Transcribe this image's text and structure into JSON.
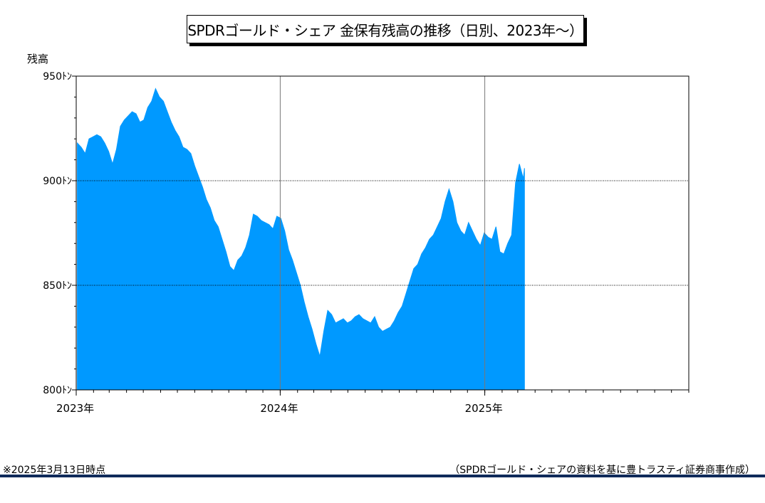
{
  "colors": {
    "area": "#0099ff",
    "frame": "#000000",
    "grid": "#000000",
    "divider": "#0f2a5a"
  },
  "chart_data": {
    "type": "area",
    "title": "SPDRゴールド・シェア 金保有残高の推移（日別、2023年～）",
    "ylabel": "残高",
    "xlabel": "",
    "ylim": [
      800,
      950
    ],
    "y_ticks": [
      800,
      850,
      900,
      950
    ],
    "y_tick_labels": [
      "800ﾄﾝ",
      "850ﾄﾝ",
      "900ﾄﾝ",
      "950ﾄﾝ"
    ],
    "y_minor_step": 10,
    "x_range": [
      "2023-01-01",
      "2026-01-01"
    ],
    "x_ticks": [
      "2023-01-01",
      "2024-01-01",
      "2025-01-01"
    ],
    "x_tick_labels": [
      "2023年",
      "2024年",
      "2025年"
    ],
    "x_minor": "monthly",
    "hgrid_dotted": [
      850,
      900
    ],
    "vgrid": [
      "2024-01-01",
      "2025-01-01"
    ],
    "grid": true,
    "legend": "none",
    "series": [
      {
        "x": [
          "2023-01-03",
          "2023-01-10",
          "2023-01-17",
          "2023-01-24",
          "2023-01-31",
          "2023-02-07",
          "2023-02-14",
          "2023-02-21",
          "2023-02-28",
          "2023-03-07",
          "2023-03-14",
          "2023-03-21",
          "2023-03-28",
          "2023-04-04",
          "2023-04-11",
          "2023-04-18",
          "2023-04-25",
          "2023-05-02",
          "2023-05-09",
          "2023-05-16",
          "2023-05-23",
          "2023-05-30",
          "2023-06-06",
          "2023-06-13",
          "2023-06-20",
          "2023-06-27",
          "2023-07-04",
          "2023-07-11",
          "2023-07-18",
          "2023-07-25",
          "2023-08-01",
          "2023-08-08",
          "2023-08-15",
          "2023-08-22",
          "2023-08-29",
          "2023-09-05",
          "2023-09-12",
          "2023-09-19",
          "2023-09-26",
          "2023-10-03",
          "2023-10-10",
          "2023-10-17",
          "2023-10-24",
          "2023-10-31",
          "2023-11-07",
          "2023-11-14",
          "2023-11-21",
          "2023-11-28",
          "2023-12-05",
          "2023-12-12",
          "2023-12-19",
          "2023-12-26",
          "2024-01-02",
          "2024-01-09",
          "2024-01-16",
          "2024-01-23",
          "2024-01-30",
          "2024-02-06",
          "2024-02-13",
          "2024-02-20",
          "2024-02-27",
          "2024-03-05",
          "2024-03-12",
          "2024-03-19",
          "2024-03-26",
          "2024-04-02",
          "2024-04-09",
          "2024-04-16",
          "2024-04-23",
          "2024-04-30",
          "2024-05-07",
          "2024-05-14",
          "2024-05-21",
          "2024-05-28",
          "2024-06-04",
          "2024-06-11",
          "2024-06-18",
          "2024-06-25",
          "2024-07-02",
          "2024-07-09",
          "2024-07-16",
          "2024-07-23",
          "2024-07-30",
          "2024-08-06",
          "2024-08-13",
          "2024-08-20",
          "2024-08-27",
          "2024-09-03",
          "2024-09-10",
          "2024-09-17",
          "2024-09-24",
          "2024-10-01",
          "2024-10-08",
          "2024-10-15",
          "2024-10-22",
          "2024-10-29",
          "2024-11-05",
          "2024-11-12",
          "2024-11-19",
          "2024-11-26",
          "2024-12-03",
          "2024-12-10",
          "2024-12-17",
          "2024-12-24",
          "2024-12-31",
          "2025-01-07",
          "2025-01-14",
          "2025-01-21",
          "2025-01-28",
          "2025-02-04",
          "2025-02-11",
          "2025-02-18",
          "2025-02-25",
          "2025-03-04",
          "2025-03-11",
          "2025-03-13"
        ],
        "values": [
          918,
          916,
          913,
          920,
          921,
          922,
          921,
          918,
          914,
          908,
          915,
          926,
          929,
          931,
          933,
          932,
          928,
          929,
          935,
          938,
          944,
          940,
          938,
          933,
          928,
          924,
          921,
          916,
          915,
          913,
          907,
          902,
          897,
          891,
          887,
          881,
          878,
          872,
          866,
          859,
          857,
          862,
          864,
          868,
          874,
          884,
          883,
          881,
          880,
          879,
          877,
          883,
          882,
          876,
          867,
          862,
          856,
          850,
          842,
          835,
          829,
          822,
          816,
          828,
          838,
          836,
          832,
          833,
          834,
          832,
          833,
          835,
          836,
          834,
          833,
          832,
          835,
          830,
          828,
          829,
          830,
          833,
          837,
          840,
          846,
          852,
          858,
          860,
          865,
          868,
          872,
          874,
          878,
          882,
          890,
          896,
          890,
          880,
          876,
          874,
          880,
          876,
          872,
          869,
          875,
          873,
          872,
          878,
          866,
          865,
          870,
          874,
          899,
          908,
          901,
          906
        ]
      }
    ]
  },
  "footer": {
    "note": "※2025年3月13日時点",
    "source": "（SPDRゴールド・シェアの資料を基に豊トラスティ証券商事作成）"
  }
}
